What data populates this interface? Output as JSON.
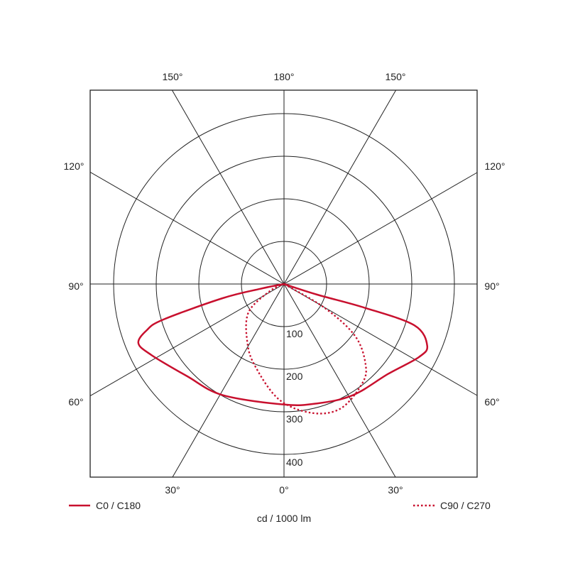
{
  "chart_data": {
    "type": "polar",
    "unit_label": "cd / 1000 lm",
    "radial_ticks": [
      100,
      200,
      300,
      400
    ],
    "rmax": 400,
    "angle_labels": {
      "top": [
        "150°",
        "180°",
        "150°"
      ],
      "left": [
        "120°",
        "90°",
        "60°"
      ],
      "right": [
        "120°",
        "90°",
        "60°"
      ],
      "bottom": [
        "30°",
        "0°",
        "30°"
      ]
    },
    "series": [
      {
        "name": "C0 / C180",
        "style": "solid",
        "color": "#c8102e",
        "points": [
          [
            -90,
            0
          ],
          [
            -78.6,
            57
          ],
          [
            -77,
            148
          ],
          [
            -73.6,
            295
          ],
          [
            -71.4,
            340
          ],
          [
            -67.9,
            369
          ],
          [
            -61.8,
            353
          ],
          [
            -46.4,
            314
          ],
          [
            -29,
            298
          ],
          [
            0,
            283
          ],
          [
            15.5,
            291
          ],
          [
            31.7,
            307
          ],
          [
            49.2,
            323
          ],
          [
            61.5,
            360
          ],
          [
            66.7,
            366
          ],
          [
            72.4,
            321
          ],
          [
            73.6,
            197
          ],
          [
            72.2,
            82
          ],
          [
            90,
            0
          ]
        ]
      },
      {
        "name": "C90 / C270",
        "style": "dotted",
        "color": "#c8102e",
        "points": [
          [
            -90,
            0
          ],
          [
            -63.4,
            37
          ],
          [
            -51.3,
            107
          ],
          [
            -31.8,
            163
          ],
          [
            -18.9,
            206
          ],
          [
            -2.3,
            272
          ],
          [
            12.4,
            310
          ],
          [
            24.6,
            321
          ],
          [
            38.2,
            297
          ],
          [
            45.4,
            269
          ],
          [
            53.8,
            207
          ],
          [
            59.6,
            110
          ],
          [
            90,
            0
          ]
        ]
      }
    ]
  }
}
